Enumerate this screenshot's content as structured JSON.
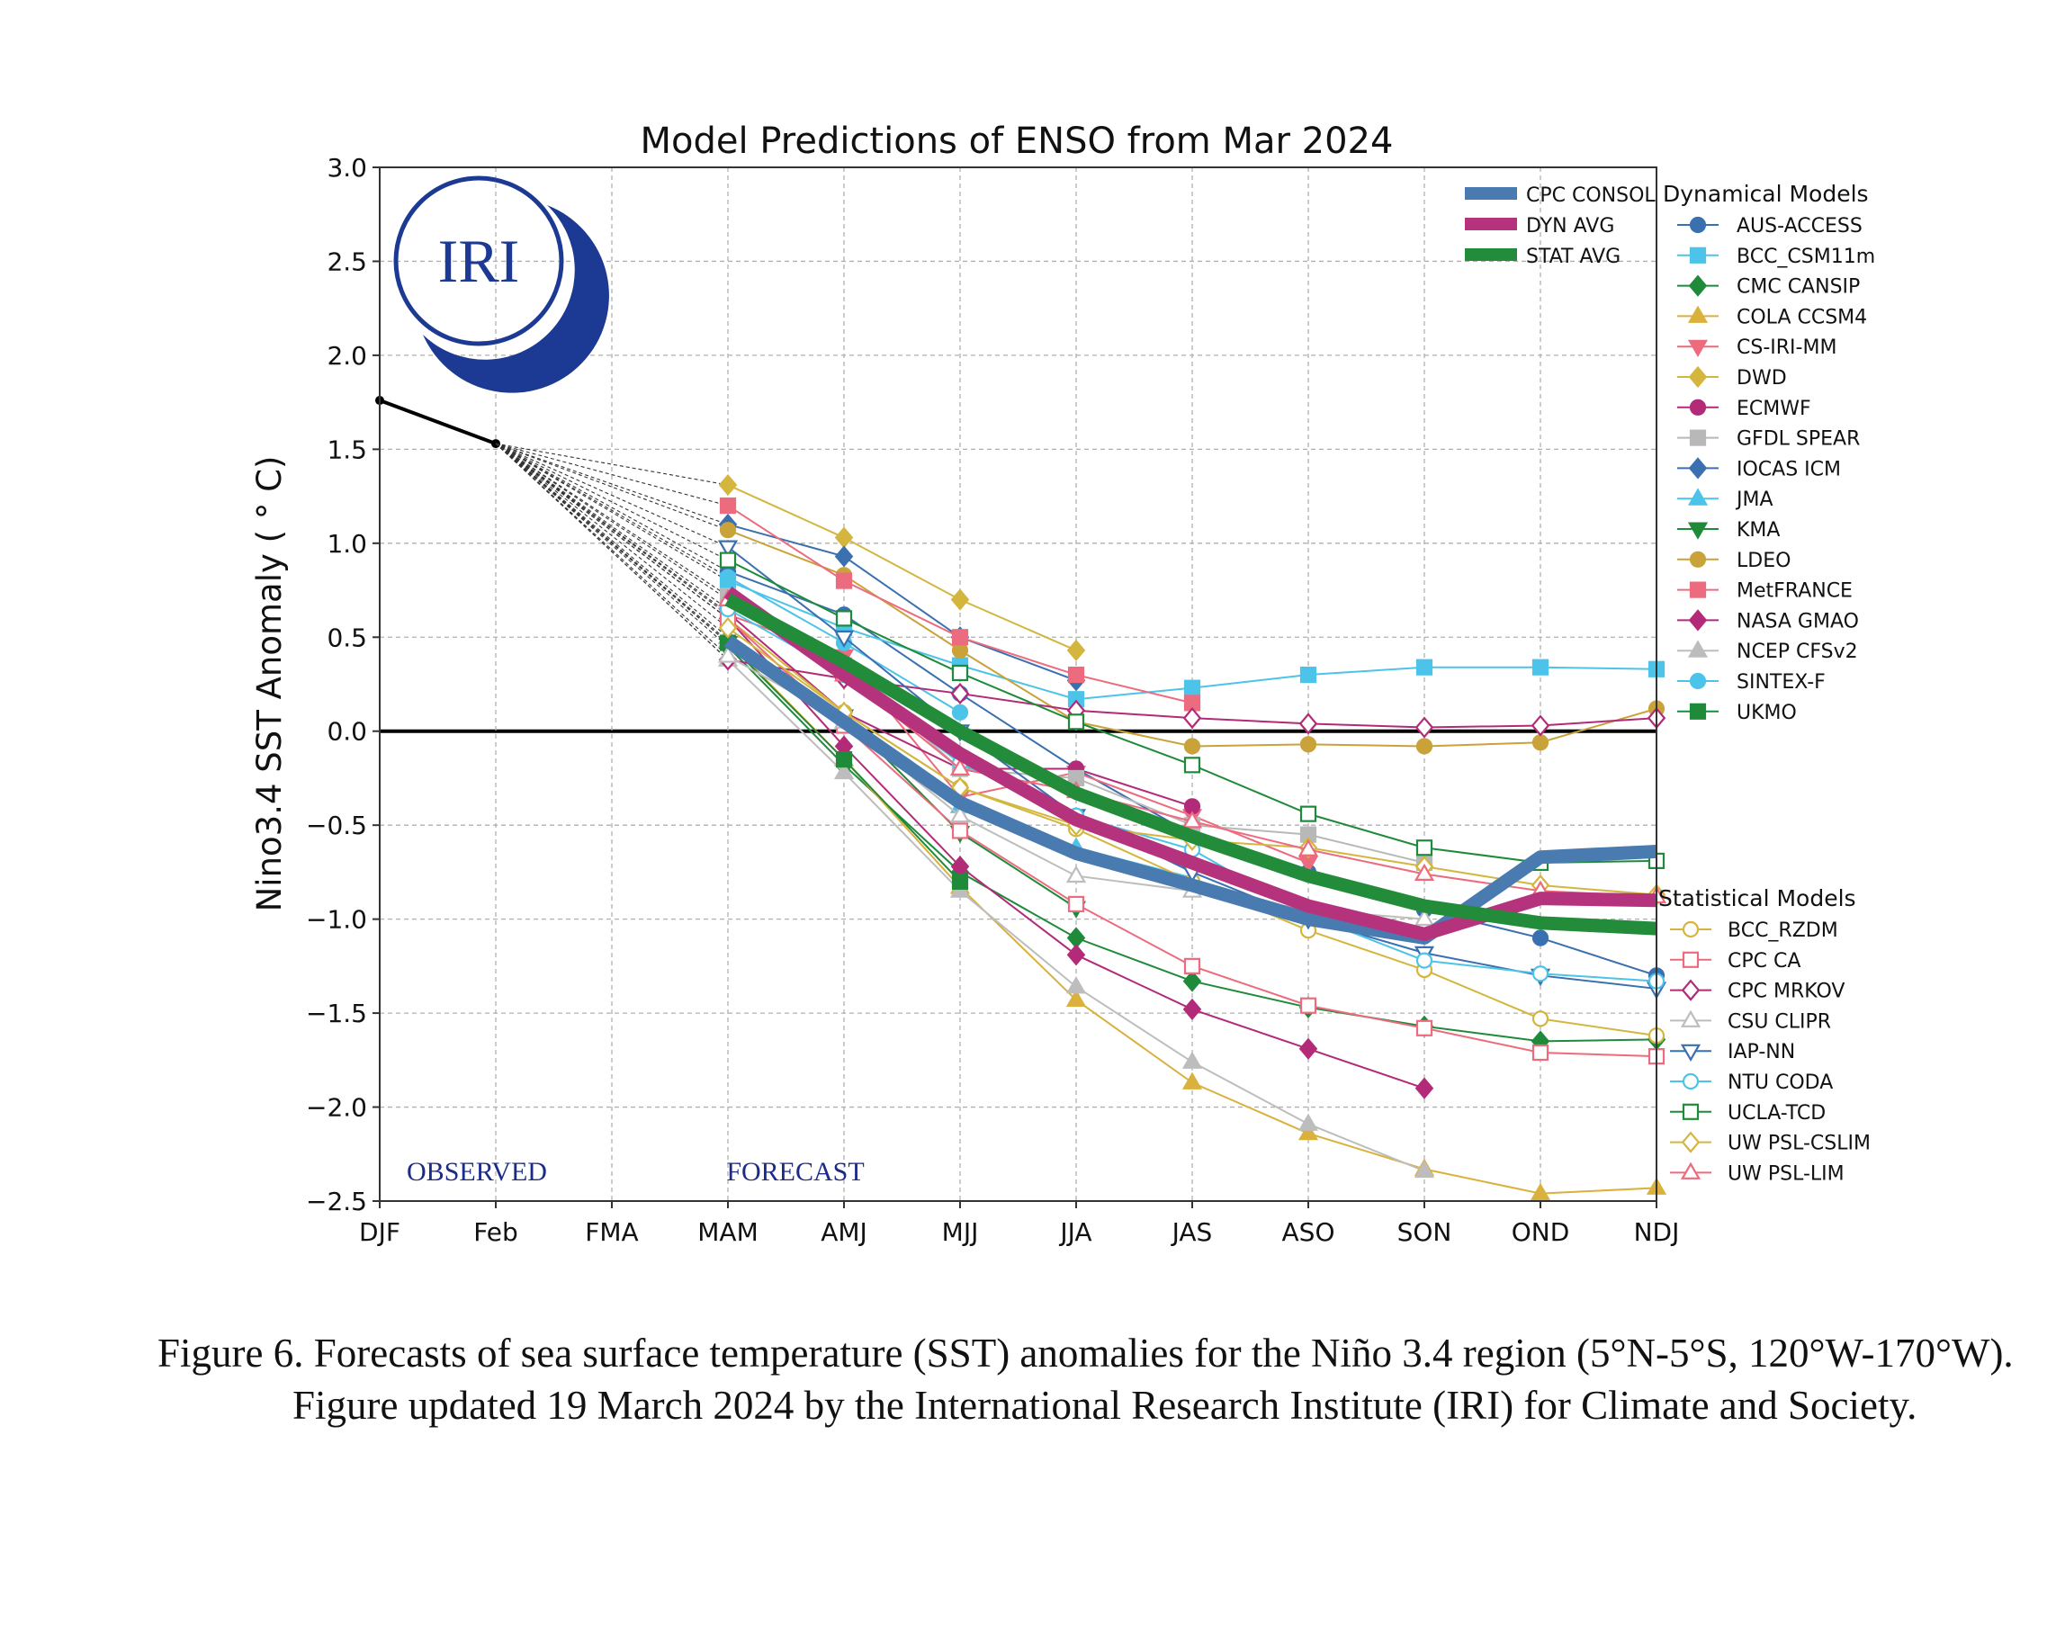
{
  "figure": {
    "caption": "Figure 6. Forecasts of sea surface temperature (SST) anomalies for the Niño 3.4 region (5°N-5°S, 120°W-170°W). Figure updated 19 March 2024 by the International Research Institute (IRI) for Climate and Society."
  },
  "logo": {
    "text": "IRI"
  },
  "chart_data": {
    "type": "line",
    "title": "Model Predictions of ENSO from Mar 2024",
    "xlabel": "",
    "ylabel": "Nino3.4 SST Anomaly ( ° C)",
    "ylim": [
      -2.5,
      3.0
    ],
    "yticks": [
      "3.0",
      "2.5",
      "2.0",
      "1.5",
      "1.0",
      "0.5",
      "0.0",
      "−0.5",
      "−1.0",
      "−1.5",
      "−2.0",
      "−2.5"
    ],
    "ytick_values": [
      3.0,
      2.5,
      2.0,
      1.5,
      1.0,
      0.5,
      0.0,
      -0.5,
      -1.0,
      -1.5,
      -2.0,
      -2.5
    ],
    "categories": [
      "DJF",
      "Feb",
      "FMA",
      "MAM",
      "AMJ",
      "MJJ",
      "JJA",
      "JAS",
      "ASO",
      "SON",
      "OND",
      "NDJ"
    ],
    "grid": true,
    "observed_label": "OBSERVED",
    "forecast_label": "FORECAST",
    "observed": [
      1.76,
      1.53
    ],
    "averages_legend_placement": "top-right inside plot",
    "averages": [
      {
        "name": "CPC CONSOL",
        "color": "#4a7bb0",
        "values": [
          null,
          null,
          null,
          0.48,
          0.05,
          -0.38,
          -0.65,
          -0.82,
          -1.0,
          -1.1,
          -0.67,
          -0.64
        ]
      },
      {
        "name": "DYN AVG",
        "color": "#b5337d",
        "values": [
          null,
          null,
          null,
          0.74,
          0.3,
          -0.12,
          -0.47,
          -0.7,
          -0.93,
          -1.08,
          -0.89,
          -0.9
        ]
      },
      {
        "name": "STAT AVG",
        "color": "#238c3a",
        "values": [
          null,
          null,
          null,
          0.7,
          0.37,
          0.0,
          -0.33,
          -0.56,
          -0.77,
          -0.93,
          -1.02,
          -1.05
        ]
      }
    ],
    "dynamical_title": "Dynamical Models",
    "dynamical": [
      {
        "name": "AUS-ACCESS",
        "color": "#3a6fb0",
        "marker": "circle",
        "values": [
          null,
          null,
          null,
          0.85,
          0.62,
          0.2,
          -0.2,
          -0.55,
          -0.75,
          -0.95,
          -1.1,
          -1.3
        ]
      },
      {
        "name": "BCC_CSM11m",
        "color": "#4cc3e8",
        "marker": "square",
        "values": [
          null,
          null,
          null,
          0.8,
          0.55,
          0.35,
          0.17,
          0.23,
          0.3,
          0.34,
          0.34,
          0.33
        ]
      },
      {
        "name": "CMC CANSIP",
        "color": "#1f8a3a",
        "marker": "diamond",
        "values": [
          null,
          null,
          null,
          0.45,
          -0.18,
          -0.75,
          -1.1,
          -1.33,
          -1.47,
          -1.57,
          -1.65,
          -1.64
        ]
      },
      {
        "name": "COLA CCSM4",
        "color": "#d9b13c",
        "marker": "triangle-up",
        "values": [
          null,
          null,
          null,
          0.48,
          -0.15,
          -0.83,
          -1.43,
          -1.87,
          -2.14,
          -2.33,
          -2.46,
          -2.43
        ]
      },
      {
        "name": "CS-IRI-MM",
        "color": "#ec6b7e",
        "marker": "triangle-down",
        "values": [
          null,
          null,
          null,
          0.62,
          0.4,
          -0.35,
          -0.22,
          -0.45,
          -0.7,
          null,
          null,
          null
        ]
      },
      {
        "name": "DWD",
        "color": "#d4b63e",
        "marker": "diamond",
        "values": [
          null,
          null,
          null,
          1.31,
          1.03,
          0.7,
          0.43,
          null,
          null,
          null,
          null,
          null
        ]
      },
      {
        "name": "ECMWF",
        "color": "#b22a78",
        "marker": "circle",
        "values": [
          null,
          null,
          null,
          0.63,
          0.1,
          -0.2,
          -0.2,
          -0.4,
          null,
          null,
          null,
          null
        ]
      },
      {
        "name": "GFDL SPEAR",
        "color": "#b8b8b8",
        "marker": "square",
        "values": [
          null,
          null,
          null,
          0.72,
          0.35,
          -0.2,
          -0.25,
          -0.5,
          -0.55,
          -0.7,
          null,
          null
        ]
      },
      {
        "name": "IOCAS ICM",
        "color": "#3a6fb0",
        "marker": "diamond",
        "values": [
          null,
          null,
          null,
          1.1,
          0.93,
          0.5,
          0.27,
          null,
          null,
          null,
          null,
          null
        ]
      },
      {
        "name": "JMA",
        "color": "#4cc3e8",
        "marker": "triangle-up",
        "values": [
          null,
          null,
          null,
          0.5,
          0.05,
          -0.4,
          -0.62,
          -0.78,
          null,
          null,
          null,
          null
        ]
      },
      {
        "name": "KMA",
        "color": "#1f8a3a",
        "marker": "triangle-down",
        "values": [
          null,
          null,
          null,
          0.47,
          0.08,
          -0.54,
          -0.94,
          null,
          null,
          null,
          null,
          null
        ]
      },
      {
        "name": "LDEO",
        "color": "#c9a23a",
        "marker": "circle",
        "values": [
          null,
          null,
          null,
          1.07,
          0.83,
          0.43,
          0.05,
          -0.08,
          -0.07,
          -0.08,
          -0.06,
          0.12
        ]
      },
      {
        "name": "MetFRANCE",
        "color": "#ec6b7e",
        "marker": "square",
        "values": [
          null,
          null,
          null,
          1.2,
          0.8,
          0.5,
          0.3,
          0.15,
          null,
          null,
          null,
          null
        ]
      },
      {
        "name": "NASA GMAO",
        "color": "#b22a78",
        "marker": "diamond",
        "values": [
          null,
          null,
          null,
          0.6,
          -0.08,
          -0.72,
          -1.19,
          -1.48,
          -1.69,
          -1.9,
          null,
          null
        ]
      },
      {
        "name": "NCEP CFSv2",
        "color": "#bdbdbd",
        "marker": "triangle-up",
        "values": [
          null,
          null,
          null,
          0.38,
          -0.22,
          -0.85,
          -1.36,
          -1.76,
          -2.09,
          -2.34,
          null,
          null
        ]
      },
      {
        "name": "SINTEX-F",
        "color": "#4cc3e8",
        "marker": "circle",
        "values": [
          null,
          null,
          null,
          0.82,
          0.47,
          0.1,
          null,
          null,
          null,
          null,
          null,
          null
        ]
      },
      {
        "name": "UKMO",
        "color": "#1f8a3a",
        "marker": "square",
        "values": [
          null,
          null,
          null,
          0.47,
          -0.15,
          -0.8,
          null,
          null,
          null,
          null,
          null,
          null
        ]
      }
    ],
    "statistical_title": "Statistical Models",
    "statistical": [
      {
        "name": "BCC_RZDM",
        "color": "#d4b63e",
        "marker": "circle",
        "values": [
          null,
          null,
          null,
          0.6,
          0.1,
          -0.3,
          -0.52,
          -0.8,
          -1.06,
          -1.27,
          -1.53,
          -1.62
        ]
      },
      {
        "name": "CPC CA",
        "color": "#ec6b7e",
        "marker": "square",
        "values": [
          null,
          null,
          null,
          0.6,
          0.03,
          -0.53,
          -0.92,
          -1.25,
          -1.46,
          -1.58,
          -1.71,
          -1.73
        ]
      },
      {
        "name": "CPC MRKOV",
        "color": "#b22a78",
        "marker": "diamond",
        "values": [
          null,
          null,
          null,
          0.38,
          0.28,
          0.2,
          0.11,
          0.07,
          0.04,
          0.02,
          0.03,
          0.07
        ]
      },
      {
        "name": "CSU CLIPR",
        "color": "#bdbdbd",
        "marker": "triangle-up",
        "values": [
          null,
          null,
          null,
          0.4,
          0.05,
          -0.45,
          -0.77,
          -0.85,
          -0.95,
          -1.0,
          null,
          null
        ]
      },
      {
        "name": "IAP-NN",
        "color": "#3a6fb0",
        "marker": "triangle-down",
        "values": [
          null,
          null,
          null,
          0.98,
          0.5,
          0.0,
          -0.45,
          -0.75,
          -1.0,
          -1.18,
          -1.3,
          -1.37
        ]
      },
      {
        "name": "NTU CODA",
        "color": "#4cc3e8",
        "marker": "circle",
        "values": [
          null,
          null,
          null,
          0.65,
          0.3,
          -0.17,
          -0.45,
          -0.63,
          -0.98,
          -1.22,
          -1.29,
          -1.33
        ]
      },
      {
        "name": "UCLA-TCD",
        "color": "#1f8a3a",
        "marker": "square",
        "values": [
          null,
          null,
          null,
          0.91,
          0.6,
          0.31,
          0.05,
          -0.18,
          -0.44,
          -0.62,
          -0.7,
          -0.69
        ]
      },
      {
        "name": "UW PSL-CSLIM",
        "color": "#d4b63e",
        "marker": "diamond",
        "values": [
          null,
          null,
          null,
          0.55,
          0.1,
          -0.3,
          -0.5,
          -0.58,
          -0.62,
          -0.72,
          -0.82,
          -0.87
        ]
      },
      {
        "name": "UW PSL-LIM",
        "color": "#ec6b7e",
        "marker": "triangle-up",
        "values": [
          null,
          null,
          null,
          0.7,
          0.3,
          -0.2,
          -0.32,
          -0.48,
          -0.63,
          -0.76,
          -0.85,
          -0.88
        ]
      }
    ]
  }
}
